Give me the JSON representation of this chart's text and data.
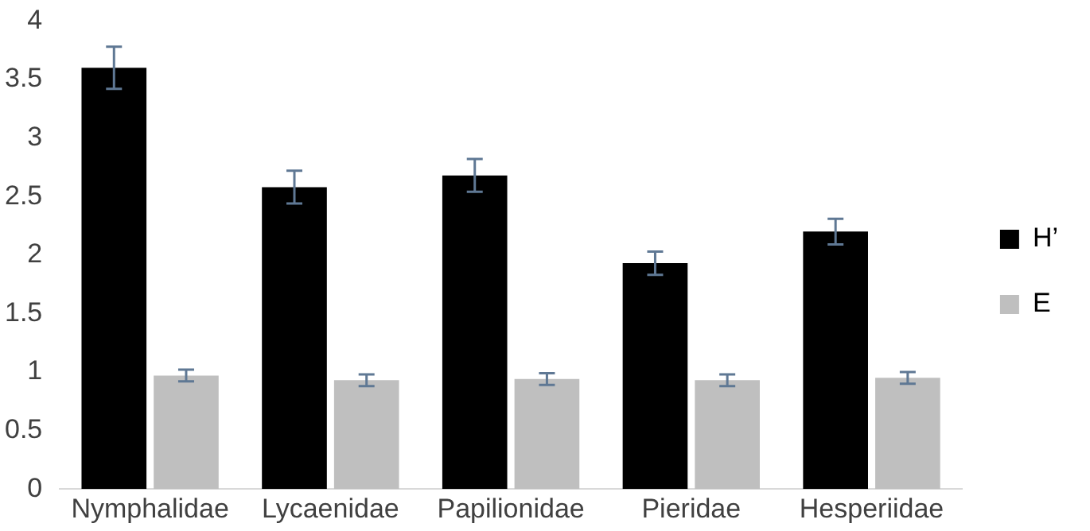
{
  "chart_data": {
    "type": "bar",
    "categories": [
      "Nymphalidae",
      "Lycaenidae",
      "Papilionidae",
      "Pieridae",
      "Hesperiidae"
    ],
    "series": [
      {
        "name": "H’",
        "color": "#000000",
        "values": [
          3.6,
          2.58,
          2.68,
          1.93,
          2.2
        ],
        "errors": [
          0.18,
          0.14,
          0.14,
          0.1,
          0.11
        ]
      },
      {
        "name": "E",
        "color": "#bfbfbf",
        "values": [
          0.97,
          0.93,
          0.94,
          0.93,
          0.95
        ],
        "errors": [
          0.05,
          0.05,
          0.05,
          0.05,
          0.05
        ]
      }
    ],
    "ylim": [
      0,
      4
    ],
    "yticks": [
      0,
      0.5,
      1,
      1.5,
      2,
      2.5,
      3,
      3.5,
      4
    ],
    "grid": false,
    "legend": "right"
  }
}
